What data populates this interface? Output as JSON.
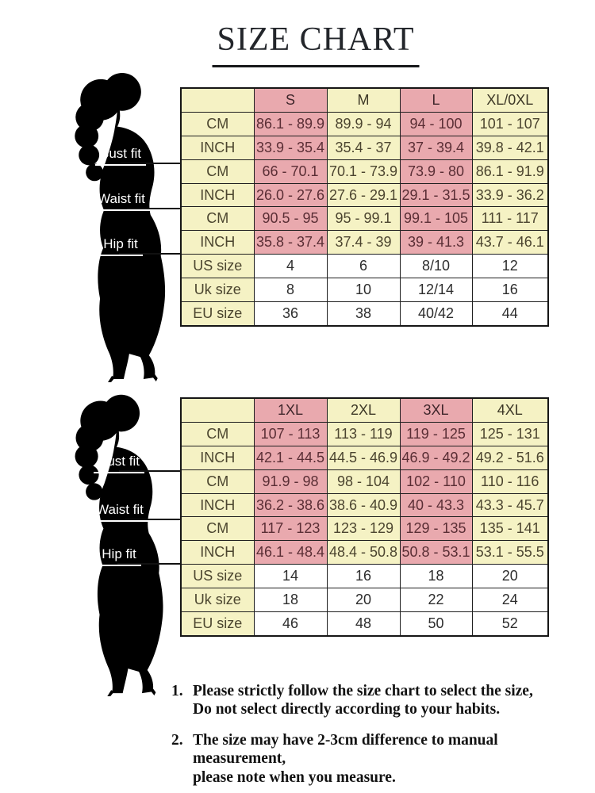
{
  "title": "SIZE CHART",
  "figure_labels": {
    "bust": "Bust fit",
    "waist": "Waist fit",
    "hip": "Hip fit"
  },
  "colors": {
    "pink": "#e9a9ae",
    "yellow": "#f5f2c4",
    "border": "#1f1f1f",
    "silhouette": "#000000"
  },
  "tables": [
    {
      "name": "sizes-s-to-xl",
      "sizes": [
        "S",
        "M",
        "L",
        "XL/0XL"
      ],
      "rows": [
        {
          "label": "CM",
          "values": [
            "86.1 - 89.9",
            "89.9 - 94",
            "94 - 100",
            "101 - 107"
          ]
        },
        {
          "label": "INCH",
          "values": [
            "33.9 - 35.4",
            "35.4 - 37",
            "37 - 39.4",
            "39.8 - 42.1"
          ]
        },
        {
          "label": "CM",
          "values": [
            "66 - 70.1",
            "70.1 - 73.9",
            "73.9 - 80",
            "86.1 - 91.9"
          ]
        },
        {
          "label": "INCH",
          "values": [
            "26.0 - 27.6",
            "27.6 - 29.1",
            "29.1 - 31.5",
            "33.9 - 36.2"
          ]
        },
        {
          "label": "CM",
          "values": [
            "90.5 - 95",
            "95 - 99.1",
            "99.1 - 105",
            "111 - 117"
          ]
        },
        {
          "label": "INCH",
          "values": [
            "35.8 - 37.4",
            "37.4 - 39",
            "39 - 41.3",
            "43.7 - 46.1"
          ]
        },
        {
          "label": "US size",
          "values": [
            "4",
            "6",
            "8/10",
            "12"
          ],
          "plain": true
        },
        {
          "label": "Uk size",
          "values": [
            "8",
            "10",
            "12/14",
            "16"
          ],
          "plain": true
        },
        {
          "label": "EU size",
          "values": [
            "36",
            "38",
            "40/42",
            "44"
          ],
          "plain": true
        }
      ]
    },
    {
      "name": "sizes-1xl-to-4xl",
      "sizes": [
        "1XL",
        "2XL",
        "3XL",
        "4XL"
      ],
      "rows": [
        {
          "label": "CM",
          "values": [
            "107 - 113",
            "113 - 119",
            "119 - 125",
            "125 - 131"
          ]
        },
        {
          "label": "INCH",
          "values": [
            "42.1 - 44.5",
            "44.5 - 46.9",
            "46.9 - 49.2",
            "49.2 - 51.6"
          ]
        },
        {
          "label": "CM",
          "values": [
            "91.9 - 98",
            "98 - 104",
            "102 - 110",
            "110 - 116"
          ]
        },
        {
          "label": "INCH",
          "values": [
            "36.2 - 38.6",
            "38.6 - 40.9",
            "40 - 43.3",
            "43.3 - 45.7"
          ]
        },
        {
          "label": "CM",
          "values": [
            "117 - 123",
            "123 - 129",
            "129 - 135",
            "135 - 141"
          ]
        },
        {
          "label": "INCH",
          "values": [
            "46.1 - 48.4",
            "48.4 - 50.8",
            "50.8 - 53.1",
            "53.1 - 55.5"
          ]
        },
        {
          "label": "US size",
          "values": [
            "14",
            "16",
            "18",
            "20"
          ],
          "plain": true
        },
        {
          "label": "Uk size",
          "values": [
            "18",
            "20",
            "22",
            "24"
          ],
          "plain": true
        },
        {
          "label": "EU size",
          "values": [
            "46",
            "48",
            "50",
            "52"
          ],
          "plain": true
        }
      ]
    }
  ],
  "notes": [
    {
      "num": "1.",
      "line1": "Please strictly follow the size chart to select the size,",
      "line2": "Do not select directly according to your habits."
    },
    {
      "num": "2.",
      "line1": "The size may have 2-3cm difference  to manual measurement,",
      "line2": "please note when you measure."
    }
  ]
}
